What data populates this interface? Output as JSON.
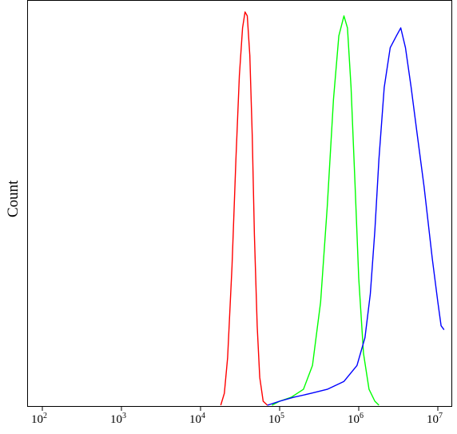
{
  "chart_data": {
    "type": "line",
    "title": "",
    "xlabel": "",
    "ylabel": "Count",
    "x_scale": "log",
    "xlim": [
      50,
      12000000
    ],
    "ylim": [
      0,
      1
    ],
    "x_ticks": [
      {
        "base": "10",
        "exp": "2",
        "value": 100
      },
      {
        "base": "10",
        "exp": "3",
        "value": 1000
      },
      {
        "base": "10",
        "exp": "4",
        "value": 10000
      },
      {
        "base": "10",
        "exp": "5",
        "value": 100000
      },
      {
        "base": "10",
        "exp": "6",
        "value": 1000000
      },
      {
        "base": "10",
        "exp": "7",
        "value": 10000000
      }
    ],
    "grid": false,
    "legend": "none",
    "series": [
      {
        "color": "#ff0000",
        "points": [
          [
            18000,
            0
          ],
          [
            20000,
            0.03
          ],
          [
            22000,
            0.12
          ],
          [
            25000,
            0.35
          ],
          [
            28000,
            0.62
          ],
          [
            31000,
            0.83
          ],
          [
            34000,
            0.95
          ],
          [
            36500,
            0.99
          ],
          [
            39000,
            0.98
          ],
          [
            42000,
            0.88
          ],
          [
            45000,
            0.68
          ],
          [
            48000,
            0.43
          ],
          [
            52000,
            0.2
          ],
          [
            56000,
            0.07
          ],
          [
            62000,
            0.01
          ],
          [
            70000,
            0
          ]
        ]
      },
      {
        "color": "#00ff00",
        "points": [
          [
            80000,
            0
          ],
          [
            100000,
            0.01
          ],
          [
            140000,
            0.02
          ],
          [
            200000,
            0.04
          ],
          [
            260000,
            0.1
          ],
          [
            330000,
            0.26
          ],
          [
            400000,
            0.5
          ],
          [
            480000,
            0.77
          ],
          [
            560000,
            0.93
          ],
          [
            650000,
            0.98
          ],
          [
            720000,
            0.95
          ],
          [
            800000,
            0.8
          ],
          [
            900000,
            0.55
          ],
          [
            1000000,
            0.32
          ],
          [
            1150000,
            0.13
          ],
          [
            1350000,
            0.04
          ],
          [
            1600000,
            0.01
          ],
          [
            1800000,
            0
          ]
        ]
      },
      {
        "color": "#0000ff",
        "points": [
          [
            70000,
            0
          ],
          [
            100000,
            0.01
          ],
          [
            150000,
            0.02
          ],
          [
            250000,
            0.03
          ],
          [
            400000,
            0.04
          ],
          [
            650000,
            0.06
          ],
          [
            950000,
            0.1
          ],
          [
            1200000,
            0.17
          ],
          [
            1400000,
            0.28
          ],
          [
            1600000,
            0.44
          ],
          [
            1800000,
            0.62
          ],
          [
            2100000,
            0.8
          ],
          [
            2500000,
            0.9
          ],
          [
            3000000,
            0.93
          ],
          [
            3400000,
            0.95
          ],
          [
            3900000,
            0.9
          ],
          [
            4600000,
            0.8
          ],
          [
            5500000,
            0.68
          ],
          [
            6700000,
            0.55
          ],
          [
            8500000,
            0.37
          ],
          [
            10000000,
            0.26
          ],
          [
            11000000,
            0.2
          ],
          [
            12000000,
            0.19
          ]
        ]
      }
    ]
  }
}
